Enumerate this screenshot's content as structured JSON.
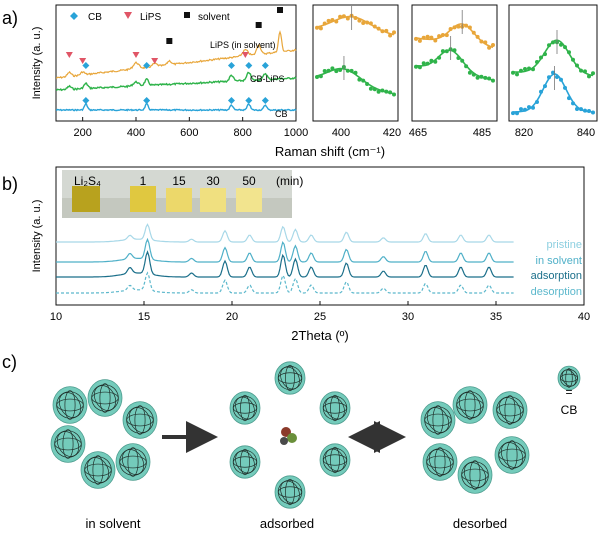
{
  "panel_labels": [
    "a)",
    "b)",
    "c)"
  ],
  "colors": {
    "cb": "#29a3d8",
    "lips": "#e8a63a",
    "cb_lips": "#2fb34a",
    "pristine": "#a8d8e8",
    "in_solvent": "#4fb0c8",
    "adsorption": "#1b6f8a",
    "desorption": "#5cb8cc",
    "cage": "#5cc2b0"
  },
  "chart_data": [
    {
      "id": "raman-main",
      "type": "line",
      "ylabel": "Intensity (a. u.)",
      "xlabel": "Raman shift (cm⁻¹)",
      "xlim": [
        100,
        1000
      ],
      "xticks": [
        "200",
        "400",
        "600",
        "800",
        "1000"
      ],
      "legend": [
        {
          "name": "CB",
          "marker": "diamond"
        },
        {
          "name": "LiPS",
          "marker": "triangle-down"
        },
        {
          "name": "solvent",
          "marker": "square"
        }
      ],
      "series": [
        {
          "name": "LiPS (in solvent)",
          "color": "#e8a63a"
        },
        {
          "name": "CB-LiPS",
          "color": "#2fb34a"
        },
        {
          "name": "CB",
          "color": "#29a3d8"
        }
      ],
      "markers": {
        "cb": [
          212,
          440,
          758,
          823,
          885
        ],
        "lips": [
          150,
          200,
          400,
          470,
          810
        ],
        "solvent": [
          525,
          860,
          940
        ]
      }
    },
    {
      "id": "raman-zoom-1",
      "type": "scatter",
      "xlim": [
        385,
        420
      ],
      "xticks": [
        "400",
        "420"
      ]
    },
    {
      "id": "raman-zoom-2",
      "type": "scatter",
      "xlim": [
        462,
        488
      ],
      "xticks": [
        "465",
        "485"
      ]
    },
    {
      "id": "raman-zoom-3",
      "type": "scatter",
      "xlim": [
        815,
        843
      ],
      "xticks": [
        "820",
        "840"
      ]
    },
    {
      "id": "xrd",
      "type": "line",
      "ylabel": "Intensity (a. u.)",
      "xlabel": "2Theta (º)",
      "xlim": [
        10,
        40
      ],
      "xticks": [
        "10",
        "15",
        "20",
        "25",
        "30",
        "35",
        "40"
      ],
      "series": [
        {
          "name": "pristine",
          "color": "#a8d8e8"
        },
        {
          "name": "in solvent",
          "color": "#4fb0c8"
        },
        {
          "name": "adsorption",
          "color": "#1b6f8a"
        },
        {
          "name": "desorption",
          "color": "#5cb8cc"
        }
      ],
      "peaks": [
        14.2,
        15.2,
        17.7,
        19.6,
        21.0,
        22.9,
        23.6,
        24.5,
        26.5,
        28.6,
        31.0,
        33.0,
        34.6
      ]
    }
  ],
  "vials": {
    "label": "Li₂S₄",
    "times": [
      "1",
      "15",
      "30",
      "50"
    ],
    "unit": "(min)"
  },
  "schematic": {
    "states": [
      "in solvent",
      "adsorbed",
      "desorbed"
    ],
    "legend_eq": "=",
    "legend_label": "CB"
  }
}
